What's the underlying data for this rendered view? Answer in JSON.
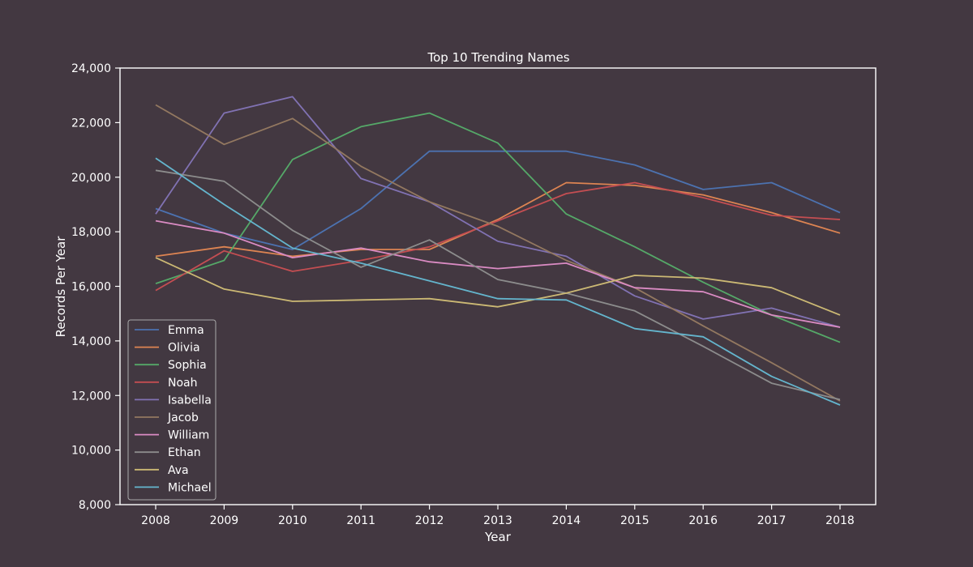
{
  "chart_data": {
    "type": "line",
    "title": "Top 10 Trending Names",
    "xlabel": "Year",
    "ylabel": "Records Per Year",
    "x": [
      2008,
      2009,
      2010,
      2011,
      2012,
      2013,
      2014,
      2015,
      2016,
      2017,
      2018
    ],
    "ylim": [
      8000,
      24000
    ],
    "yticks": [
      8000,
      10000,
      12000,
      14000,
      16000,
      18000,
      20000,
      22000,
      24000
    ],
    "yticklabels": [
      "8,000",
      "10,000",
      "12,000",
      "14,000",
      "16,000",
      "18,000",
      "20,000",
      "22,000",
      "24,000"
    ],
    "grid": false,
    "legend_position": "lower-left",
    "series": [
      {
        "name": "Emma",
        "color": "#4c72b0",
        "values": [
          18850,
          17950,
          17350,
          18850,
          20950,
          20950,
          20950,
          20450,
          19550,
          19800,
          18700
        ]
      },
      {
        "name": "Olivia",
        "color": "#dd8452",
        "values": [
          17100,
          17450,
          17100,
          17350,
          17350,
          18450,
          19800,
          19700,
          19350,
          18700,
          17950
        ]
      },
      {
        "name": "Sophia",
        "color": "#55a868",
        "values": [
          16100,
          16950,
          20650,
          21850,
          22350,
          21250,
          18650,
          17450,
          16150,
          14950,
          13950
        ]
      },
      {
        "name": "Noah",
        "color": "#c44e52",
        "values": [
          15850,
          17300,
          16550,
          16950,
          17450,
          18400,
          19400,
          19800,
          19250,
          18600,
          18450
        ]
      },
      {
        "name": "Isabella",
        "color": "#8172b3",
        "values": [
          18650,
          22350,
          22950,
          19950,
          19100,
          17650,
          17100,
          15650,
          14800,
          15200,
          14500
        ]
      },
      {
        "name": "Jacob",
        "color": "#937860",
        "values": [
          22650,
          21200,
          22150,
          20400,
          19100,
          18200,
          16950,
          15950,
          14550,
          13200,
          11800
        ]
      },
      {
        "name": "William",
        "color": "#da8bc3",
        "values": [
          18400,
          17950,
          17050,
          17400,
          16900,
          16650,
          16850,
          15950,
          15800,
          14950,
          14500
        ]
      },
      {
        "name": "Ethan",
        "color": "#8c8c8c",
        "values": [
          20250,
          19850,
          18050,
          16700,
          17700,
          16250,
          15750,
          15100,
          13800,
          12450,
          11850
        ]
      },
      {
        "name": "Ava",
        "color": "#ccb974",
        "values": [
          17050,
          15900,
          15450,
          15500,
          15550,
          15250,
          15750,
          16400,
          16300,
          15950,
          14950
        ]
      },
      {
        "name": "Michael",
        "color": "#64b5cd",
        "values": [
          20700,
          19000,
          17400,
          16850,
          16200,
          15550,
          15500,
          14450,
          14150,
          12700,
          11650
        ]
      }
    ]
  }
}
